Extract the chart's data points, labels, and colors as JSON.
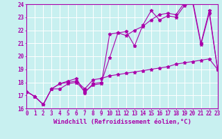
{
  "background_color": "#c8f0f0",
  "grid_color": "#ffffff",
  "line_color": "#aa00aa",
  "x_min": 0,
  "x_max": 23,
  "y_min": 16,
  "y_max": 24,
  "xlabel": "Windchill (Refroidissement éolien,°C)",
  "series": [
    [
      17.3,
      16.9,
      16.3,
      17.5,
      17.9,
      18.1,
      18.3,
      17.2,
      17.9,
      18.0,
      19.9,
      21.8,
      21.9,
      20.8,
      22.4,
      23.5,
      22.8,
      23.1,
      23.0,
      23.9,
      24.1,
      20.9,
      23.3,
      19.0
    ],
    [
      17.3,
      16.9,
      16.3,
      17.5,
      17.5,
      17.9,
      18.0,
      17.3,
      17.8,
      17.9,
      21.7,
      21.8,
      21.6,
      22.0,
      22.3,
      22.8,
      23.2,
      23.3,
      23.2,
      24.1,
      24.3,
      21.0,
      23.5,
      19.0
    ],
    [
      17.3,
      16.9,
      16.3,
      17.5,
      17.9,
      18.0,
      18.1,
      17.5,
      18.2,
      18.3,
      18.5,
      18.6,
      18.7,
      18.8,
      18.9,
      19.0,
      19.1,
      19.2,
      19.4,
      19.5,
      19.6,
      19.7,
      19.8,
      19.0
    ]
  ],
  "x_tick_labels": [
    "0",
    "1",
    "2",
    "3",
    "4",
    "5",
    "6",
    "7",
    "8",
    "9",
    "10",
    "11",
    "12",
    "13",
    "14",
    "15",
    "16",
    "17",
    "18",
    "19",
    "20",
    "21",
    "22",
    "23"
  ],
  "y_ticks": [
    16,
    17,
    18,
    19,
    20,
    21,
    22,
    23,
    24
  ],
  "tick_fontsize": 5.5,
  "xlabel_fontsize": 6.5
}
